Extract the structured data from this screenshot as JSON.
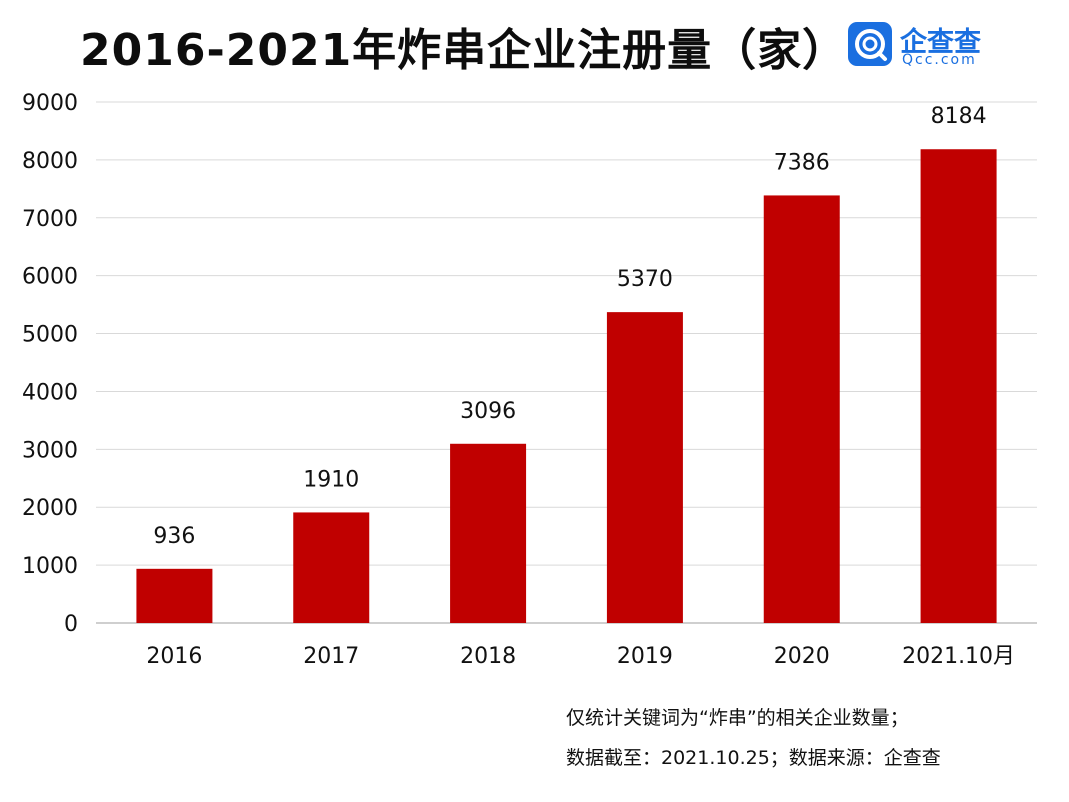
{
  "header": {
    "title": "2016-2021年炸串企业注册量（家）"
  },
  "logo": {
    "name": "企查查",
    "domain": "Qcc.com",
    "color": "#1a6fe0"
  },
  "chart_data": {
    "type": "bar",
    "title": "2016-2021年炸串企业注册量（家）",
    "categories": [
      "2016",
      "2017",
      "2018",
      "2019",
      "2020",
      "2021.10月"
    ],
    "values": [
      936,
      1910,
      3096,
      5370,
      7386,
      8184
    ],
    "data_labels": [
      "936",
      "1910",
      "3096",
      "5370",
      "7386",
      "8184"
    ],
    "ylim": [
      0,
      9000
    ],
    "yticks": [
      "0",
      "1000",
      "2000",
      "3000",
      "4000",
      "5000",
      "6000",
      "7000",
      "8000",
      "9000"
    ],
    "xlabel": "",
    "ylabel": "",
    "grid": true,
    "bar_color": "#c00000",
    "grid_color": "#d9d9d9"
  },
  "notes": {
    "line1": "仅统计关键词为“炸串”的相关企业数量；",
    "line2": "数据截至：2021.10.25；数据来源：企查查"
  }
}
